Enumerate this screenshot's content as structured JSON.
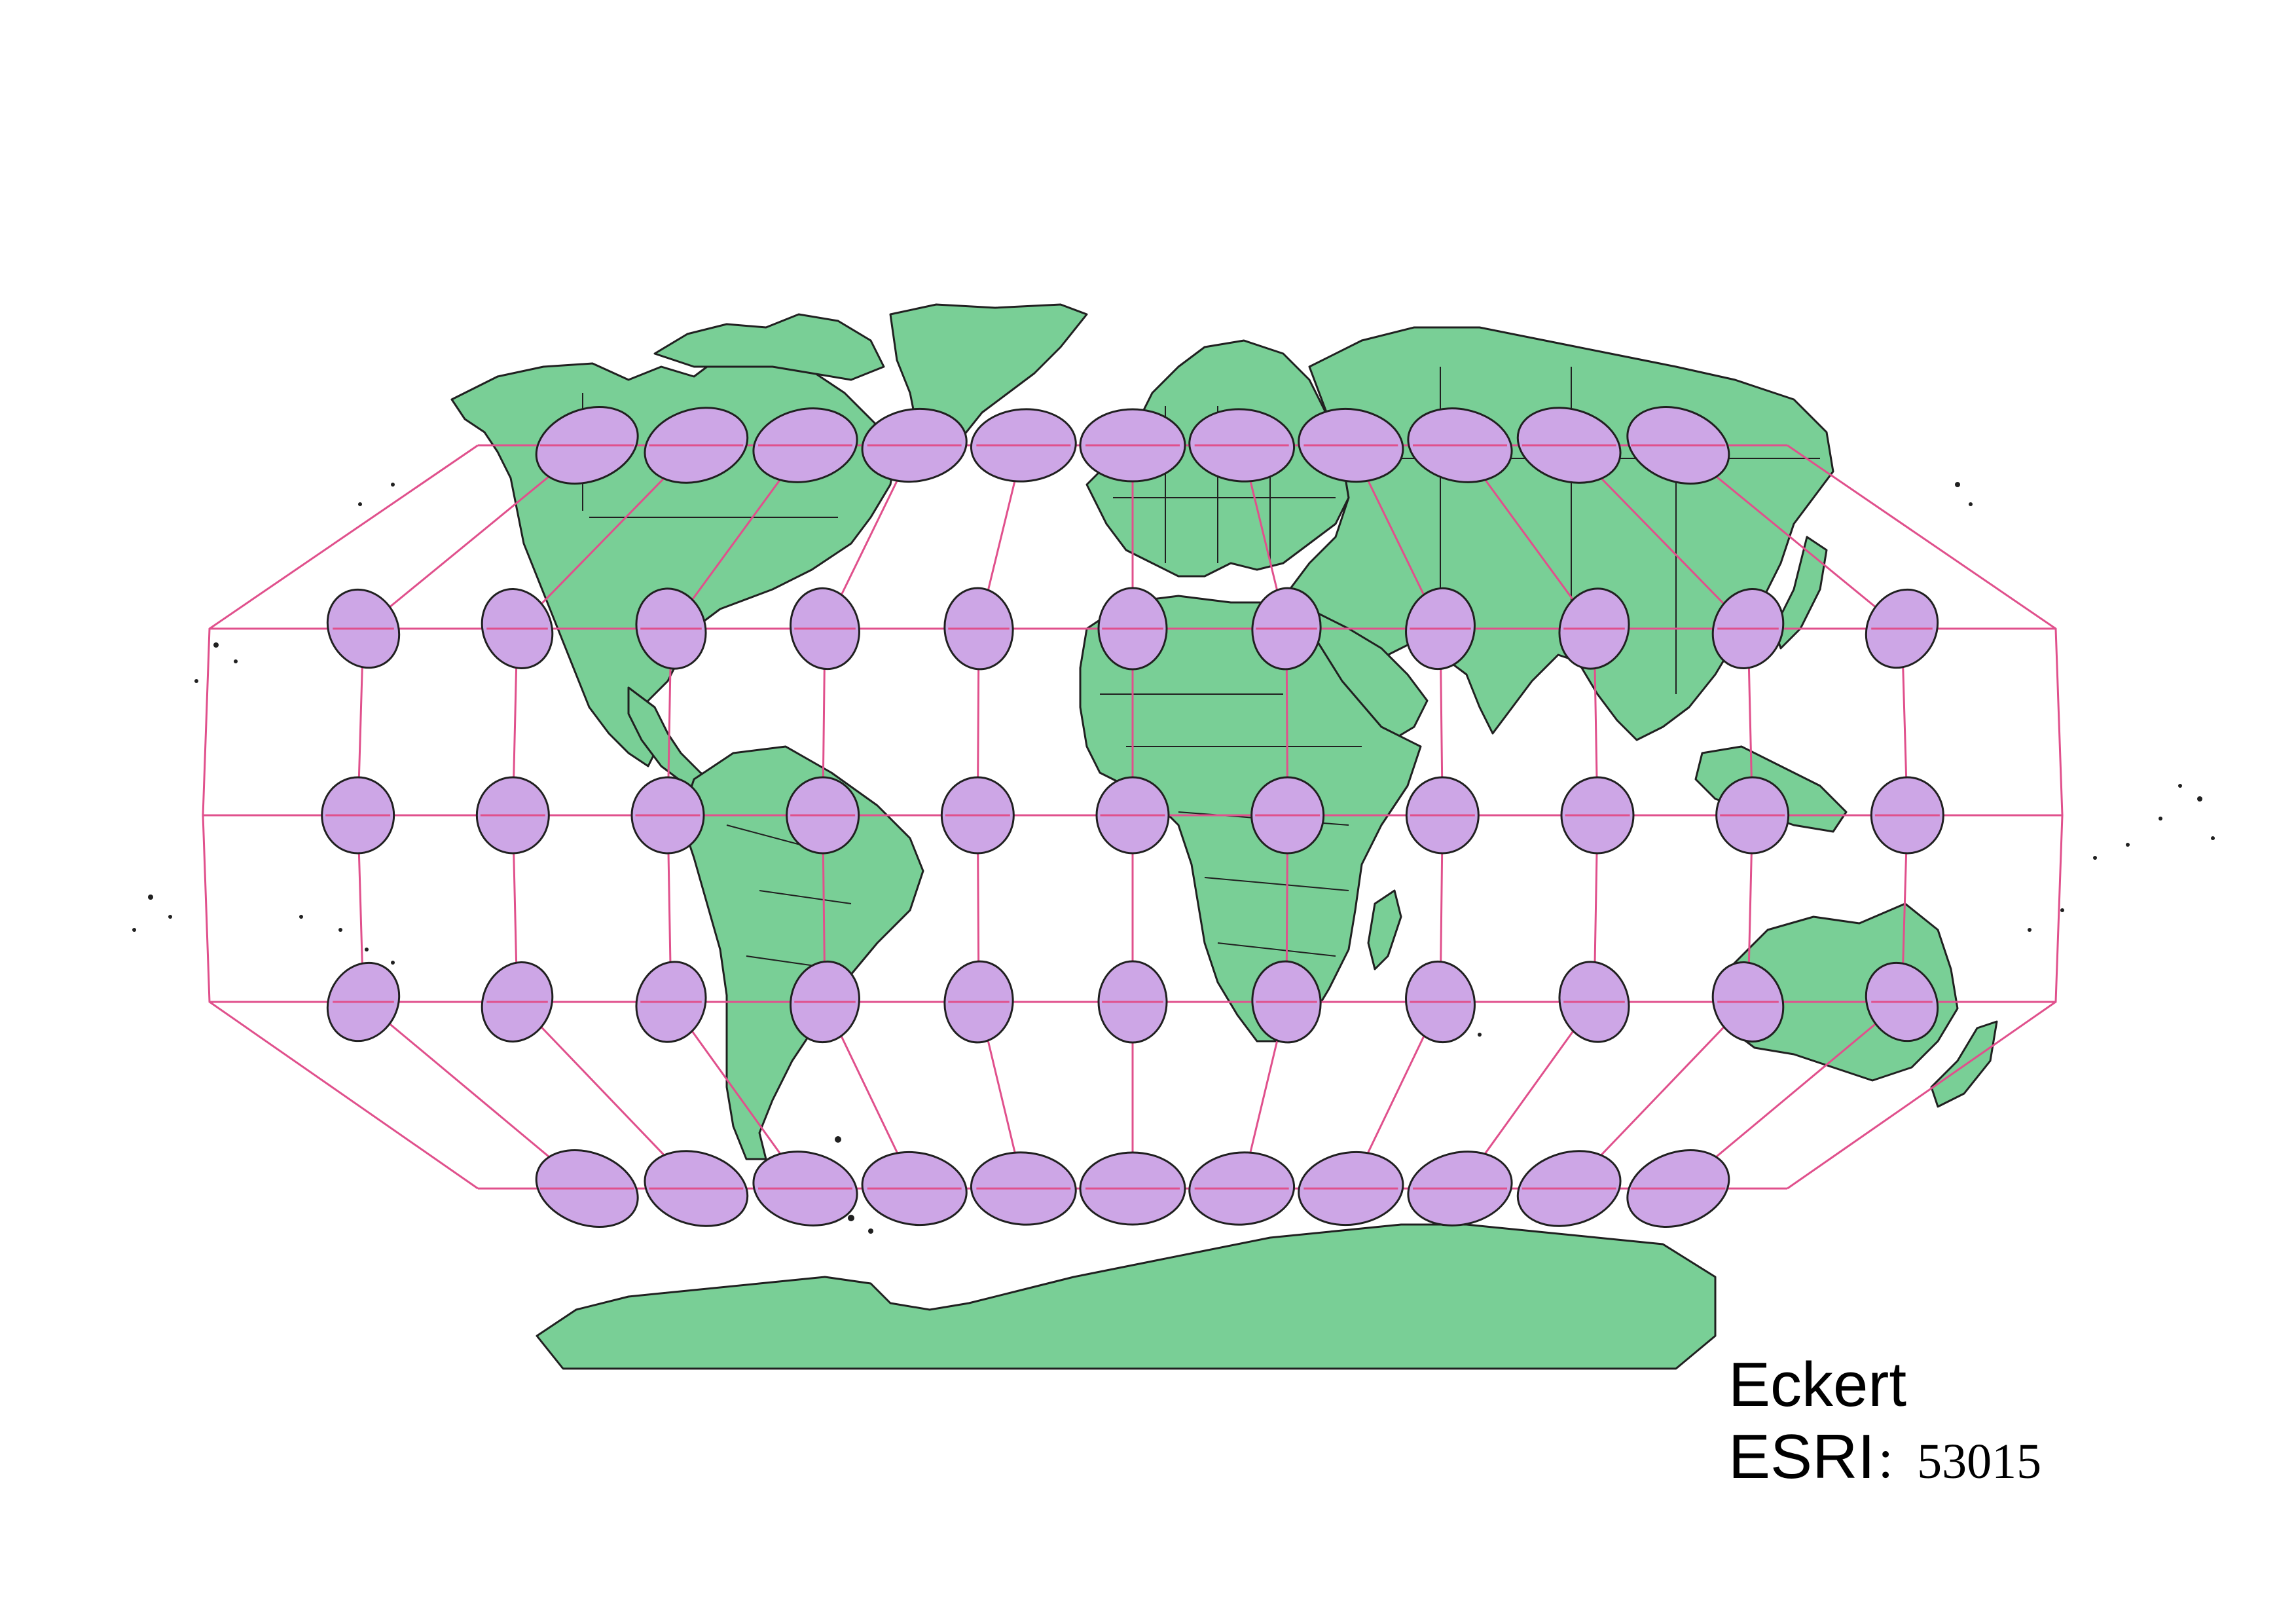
{
  "map": {
    "projection_name": "Eckert",
    "code_prefix": "ESRI",
    "code_separator": "：",
    "code_number": "53015",
    "colors": {
      "land": "#79cf96",
      "outline": "#202020",
      "graticule": "#e0508c",
      "indicatrix": "#cda6e6"
    },
    "graticule": {
      "meridians_deg": [
        -180,
        -150,
        -120,
        -90,
        -60,
        -30,
        0,
        30,
        60,
        90,
        120,
        150,
        180
      ],
      "parallels_deg": [
        -60,
        -30,
        0,
        30,
        60
      ]
    },
    "indicatrix_rows": 5,
    "indicatrix_per_row": 11
  }
}
